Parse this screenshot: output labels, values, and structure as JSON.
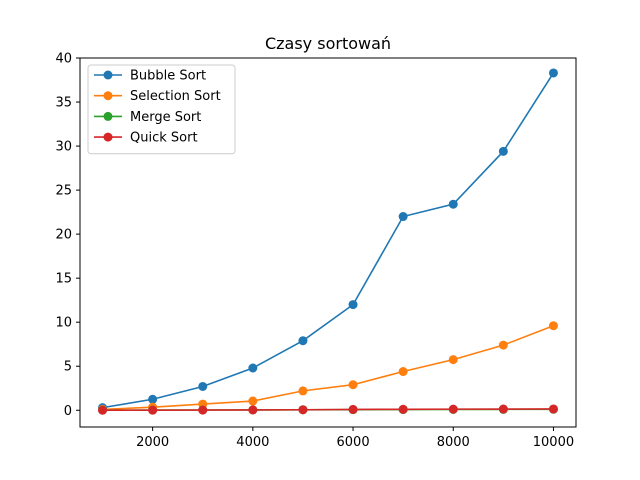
{
  "chart_data": {
    "type": "line",
    "title": "Czasy sortowań",
    "xlabel": "",
    "ylabel": "",
    "xlim": [
      550,
      10450
    ],
    "ylim": [
      -1.9,
      40
    ],
    "x_ticks": [
      2000,
      4000,
      6000,
      8000,
      10000
    ],
    "y_ticks": [
      0,
      5,
      10,
      15,
      20,
      25,
      30,
      35,
      40
    ],
    "grid": false,
    "legend_position": "upper-left",
    "x": [
      1000,
      2000,
      3000,
      4000,
      5000,
      6000,
      7000,
      8000,
      9000,
      10000
    ],
    "series": [
      {
        "name": "Bubble Sort",
        "color": "#1f77b4",
        "values": [
          0.3,
          1.25,
          2.7,
          4.8,
          7.9,
          12.0,
          22.0,
          23.4,
          29.4,
          38.3
        ]
      },
      {
        "name": "Selection Sort",
        "color": "#ff7f0e",
        "values": [
          0.1,
          0.35,
          0.7,
          1.05,
          2.2,
          2.9,
          4.4,
          5.75,
          7.4,
          9.6
        ]
      },
      {
        "name": "Merge Sort",
        "color": "#2ca02c",
        "values": [
          0.01,
          0.02,
          0.03,
          0.04,
          0.05,
          0.07,
          0.08,
          0.09,
          0.1,
          0.11
        ]
      },
      {
        "name": "Quick Sort",
        "color": "#d62728",
        "values": [
          0.005,
          0.01,
          0.02,
          0.04,
          0.06,
          0.1,
          0.11,
          0.13,
          0.14,
          0.15
        ]
      }
    ]
  }
}
